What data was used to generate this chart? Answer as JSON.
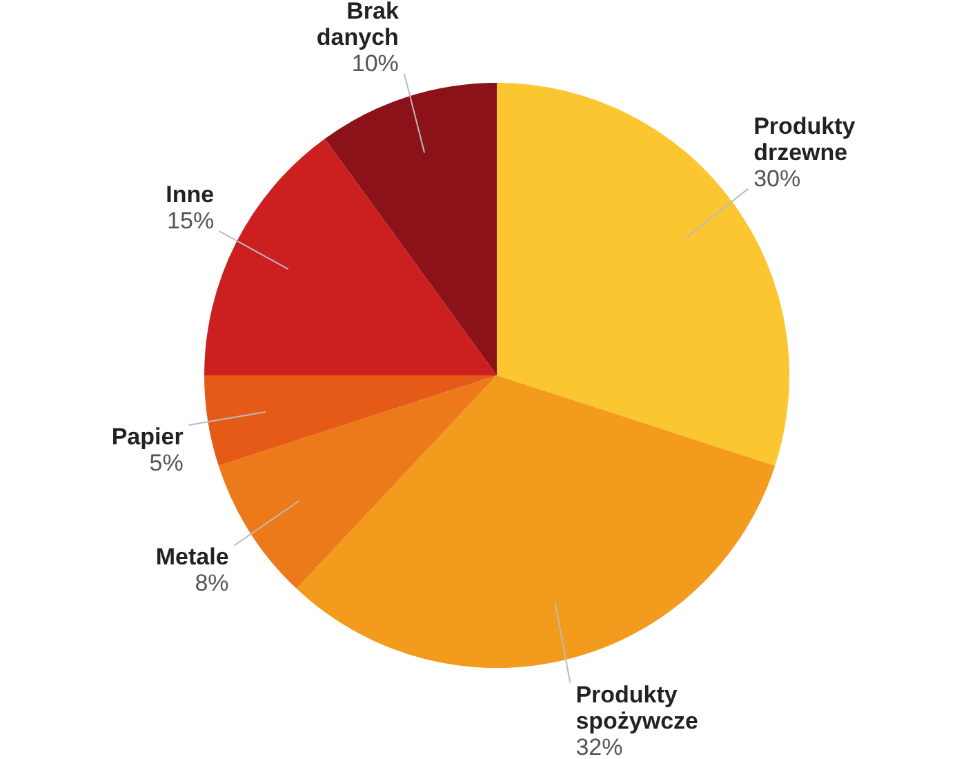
{
  "chart_data": {
    "type": "pie",
    "categories": [
      "Produkty drzewne",
      "Produkty spożywcze",
      "Metale",
      "Papier",
      "Inne",
      "Brak danych"
    ],
    "values": [
      30,
      32,
      8,
      5,
      15,
      10
    ],
    "colors": [
      "#fcc630",
      "#f29b1c",
      "#ec7a1a",
      "#e55a17",
      "#cc2020",
      "#8b1218"
    ],
    "value_labels": [
      "30%",
      "32%",
      "8%",
      "5%",
      "15%",
      "10%"
    ]
  }
}
